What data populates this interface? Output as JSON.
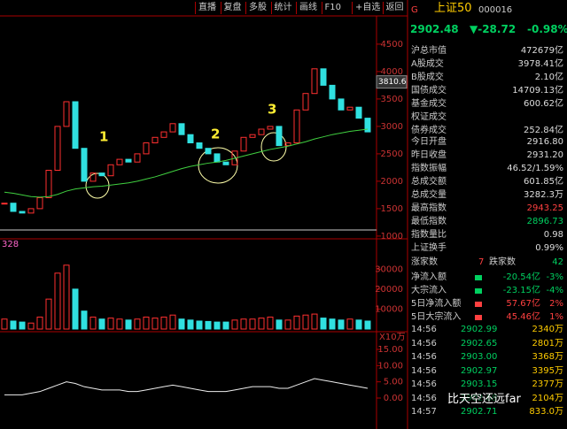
{
  "toolbar": [
    "直播",
    "复盘",
    "多股",
    "统计",
    "画线",
    "F10",
    "+自选",
    "返回"
  ],
  "quote": {
    "flag": "G",
    "name": "上证50",
    "code": "000016",
    "price": "2902.48",
    "change": "▼-28.72",
    "pct": "-0.98%"
  },
  "market": [
    {
      "label": "沪总市值",
      "value": "472679亿"
    },
    {
      "label": "A股成交",
      "value": "3978.41亿"
    },
    {
      "label": "B股成交",
      "value": "2.10亿"
    },
    {
      "label": "国债成交",
      "value": "14709.13亿"
    },
    {
      "label": "基金成交",
      "value": "600.62亿"
    },
    {
      "label": "权证成交",
      "value": null
    },
    {
      "label": "债券成交",
      "value": "252.84亿"
    }
  ],
  "stats": [
    {
      "label": "今日开盘",
      "value": "2916.80"
    },
    {
      "label": "昨日收盘",
      "value": "2931.20"
    },
    {
      "label": "指数振幅",
      "value": "46.52/1.59%"
    },
    {
      "label": "总成交额",
      "value": "601.85亿"
    },
    {
      "label": "总成交量",
      "value": "3282.3万"
    },
    {
      "label": "最高指数",
      "value": "2943.25",
      "color": "#ff4040"
    },
    {
      "label": "最低指数",
      "value": "2896.73",
      "color": "#00d060"
    },
    {
      "label": "指数量比",
      "value": "0.98"
    },
    {
      "label": "上证换手",
      "value": "0.99%"
    }
  ],
  "breadth": {
    "up_label": "涨家数",
    "up": 7,
    "down_label": "跌家数",
    "down": 42
  },
  "flows": [
    {
      "label": "净流入额",
      "value": "-20.54亿",
      "pct": "-3%",
      "color": "#00d060"
    },
    {
      "label": "大宗流入",
      "value": "-23.15亿",
      "pct": "-4%",
      "color": "#00d060"
    },
    {
      "label": "5日净流入额",
      "value": "57.67亿",
      "pct": "2%",
      "color": "#ff4040"
    },
    {
      "label": "5日大宗流入",
      "value": "45.46亿",
      "pct": "1%",
      "color": "#ff4040"
    }
  ],
  "trades": [
    {
      "time": "14:56",
      "price": "2902.99",
      "volume": "2340万"
    },
    {
      "time": "14:56",
      "price": "2902.65",
      "volume": "2801万"
    },
    {
      "time": "14:56",
      "price": "2903.00",
      "volume": "3368万"
    },
    {
      "time": "14:56",
      "price": "2902.97",
      "volume": "3395万"
    },
    {
      "time": "14:56",
      "price": "2903.15",
      "volume": "2377万"
    },
    {
      "time": "14:56",
      "price": "2902.69",
      "volume": "2104万"
    },
    {
      "time": "14:57",
      "price": "2902.71",
      "volume": "833.0万"
    }
  ],
  "watermark": "比天空还远far",
  "chart_data": [
    {
      "type": "candlestick",
      "closes": [
        1600,
        1450,
        1420,
        1500,
        1700,
        2200,
        3000,
        3450,
        2600,
        2000,
        2150,
        2100,
        2300,
        2400,
        2350,
        2500,
        2700,
        2800,
        2900,
        3050,
        2850,
        2700,
        2600,
        2500,
        2350,
        2300,
        2550,
        2800,
        2850,
        2950,
        3000,
        2650,
        2700,
        3300,
        3600,
        4050,
        3750,
        3500,
        3300,
        3350,
        3150,
        2900
      ],
      "ma": [
        1800,
        1780,
        1750,
        1720,
        1710,
        1720,
        1760,
        1820,
        1860,
        1880,
        1900,
        1910,
        1930,
        1950,
        1970,
        2000,
        2040,
        2080,
        2130,
        2180,
        2230,
        2270,
        2300,
        2330,
        2350,
        2380,
        2420,
        2460,
        2500,
        2540,
        2580,
        2610,
        2640,
        2680,
        2720,
        2770,
        2810,
        2850,
        2880,
        2910,
        2930,
        2950
      ],
      "ylim": [
        950,
        4950
      ],
      "yticks": [
        1000,
        1500,
        2000,
        2500,
        3000,
        3500,
        4000,
        4500
      ],
      "price_label": 3810.6,
      "annotations": [
        "1",
        "2",
        "3"
      ]
    },
    {
      "type": "bar",
      "label": "328",
      "unit": "X10万",
      "values": [
        5000,
        4000,
        3500,
        3000,
        6000,
        15000,
        28000,
        32000,
        20000,
        9000,
        6000,
        5000,
        5500,
        5000,
        4500,
        5000,
        6000,
        5500,
        6000,
        7000,
        5000,
        4500,
        4000,
        3800,
        3500,
        3500,
        4500,
        5000,
        5000,
        5500,
        6000,
        4500,
        4500,
        6500,
        7000,
        7500,
        5500,
        5000,
        4500,
        5000,
        4500,
        4000
      ],
      "ylim": [
        0,
        35000
      ],
      "yticks": [
        10000,
        20000,
        30000
      ]
    },
    {
      "type": "line",
      "values": [
        1,
        1,
        1,
        1.5,
        2,
        3,
        4,
        5,
        4.5,
        3.5,
        3,
        2.5,
        2.5,
        2.5,
        2,
        2,
        2.5,
        3,
        3.5,
        4,
        3.5,
        3,
        2.5,
        2,
        2,
        2,
        2.5,
        3,
        3.5,
        3.5,
        3.5,
        3,
        3,
        4,
        5,
        6,
        5.5,
        5,
        4.5,
        4,
        3.5,
        3
      ],
      "ylim": [
        0,
        15
      ],
      "yticks": [
        {
          "value": 0,
          "label": "0.00"
        },
        {
          "value": 5,
          "label": "5.00"
        },
        {
          "value": 10,
          "label": "10.00"
        },
        {
          "value": 15,
          "label": "15.00"
        }
      ]
    }
  ]
}
